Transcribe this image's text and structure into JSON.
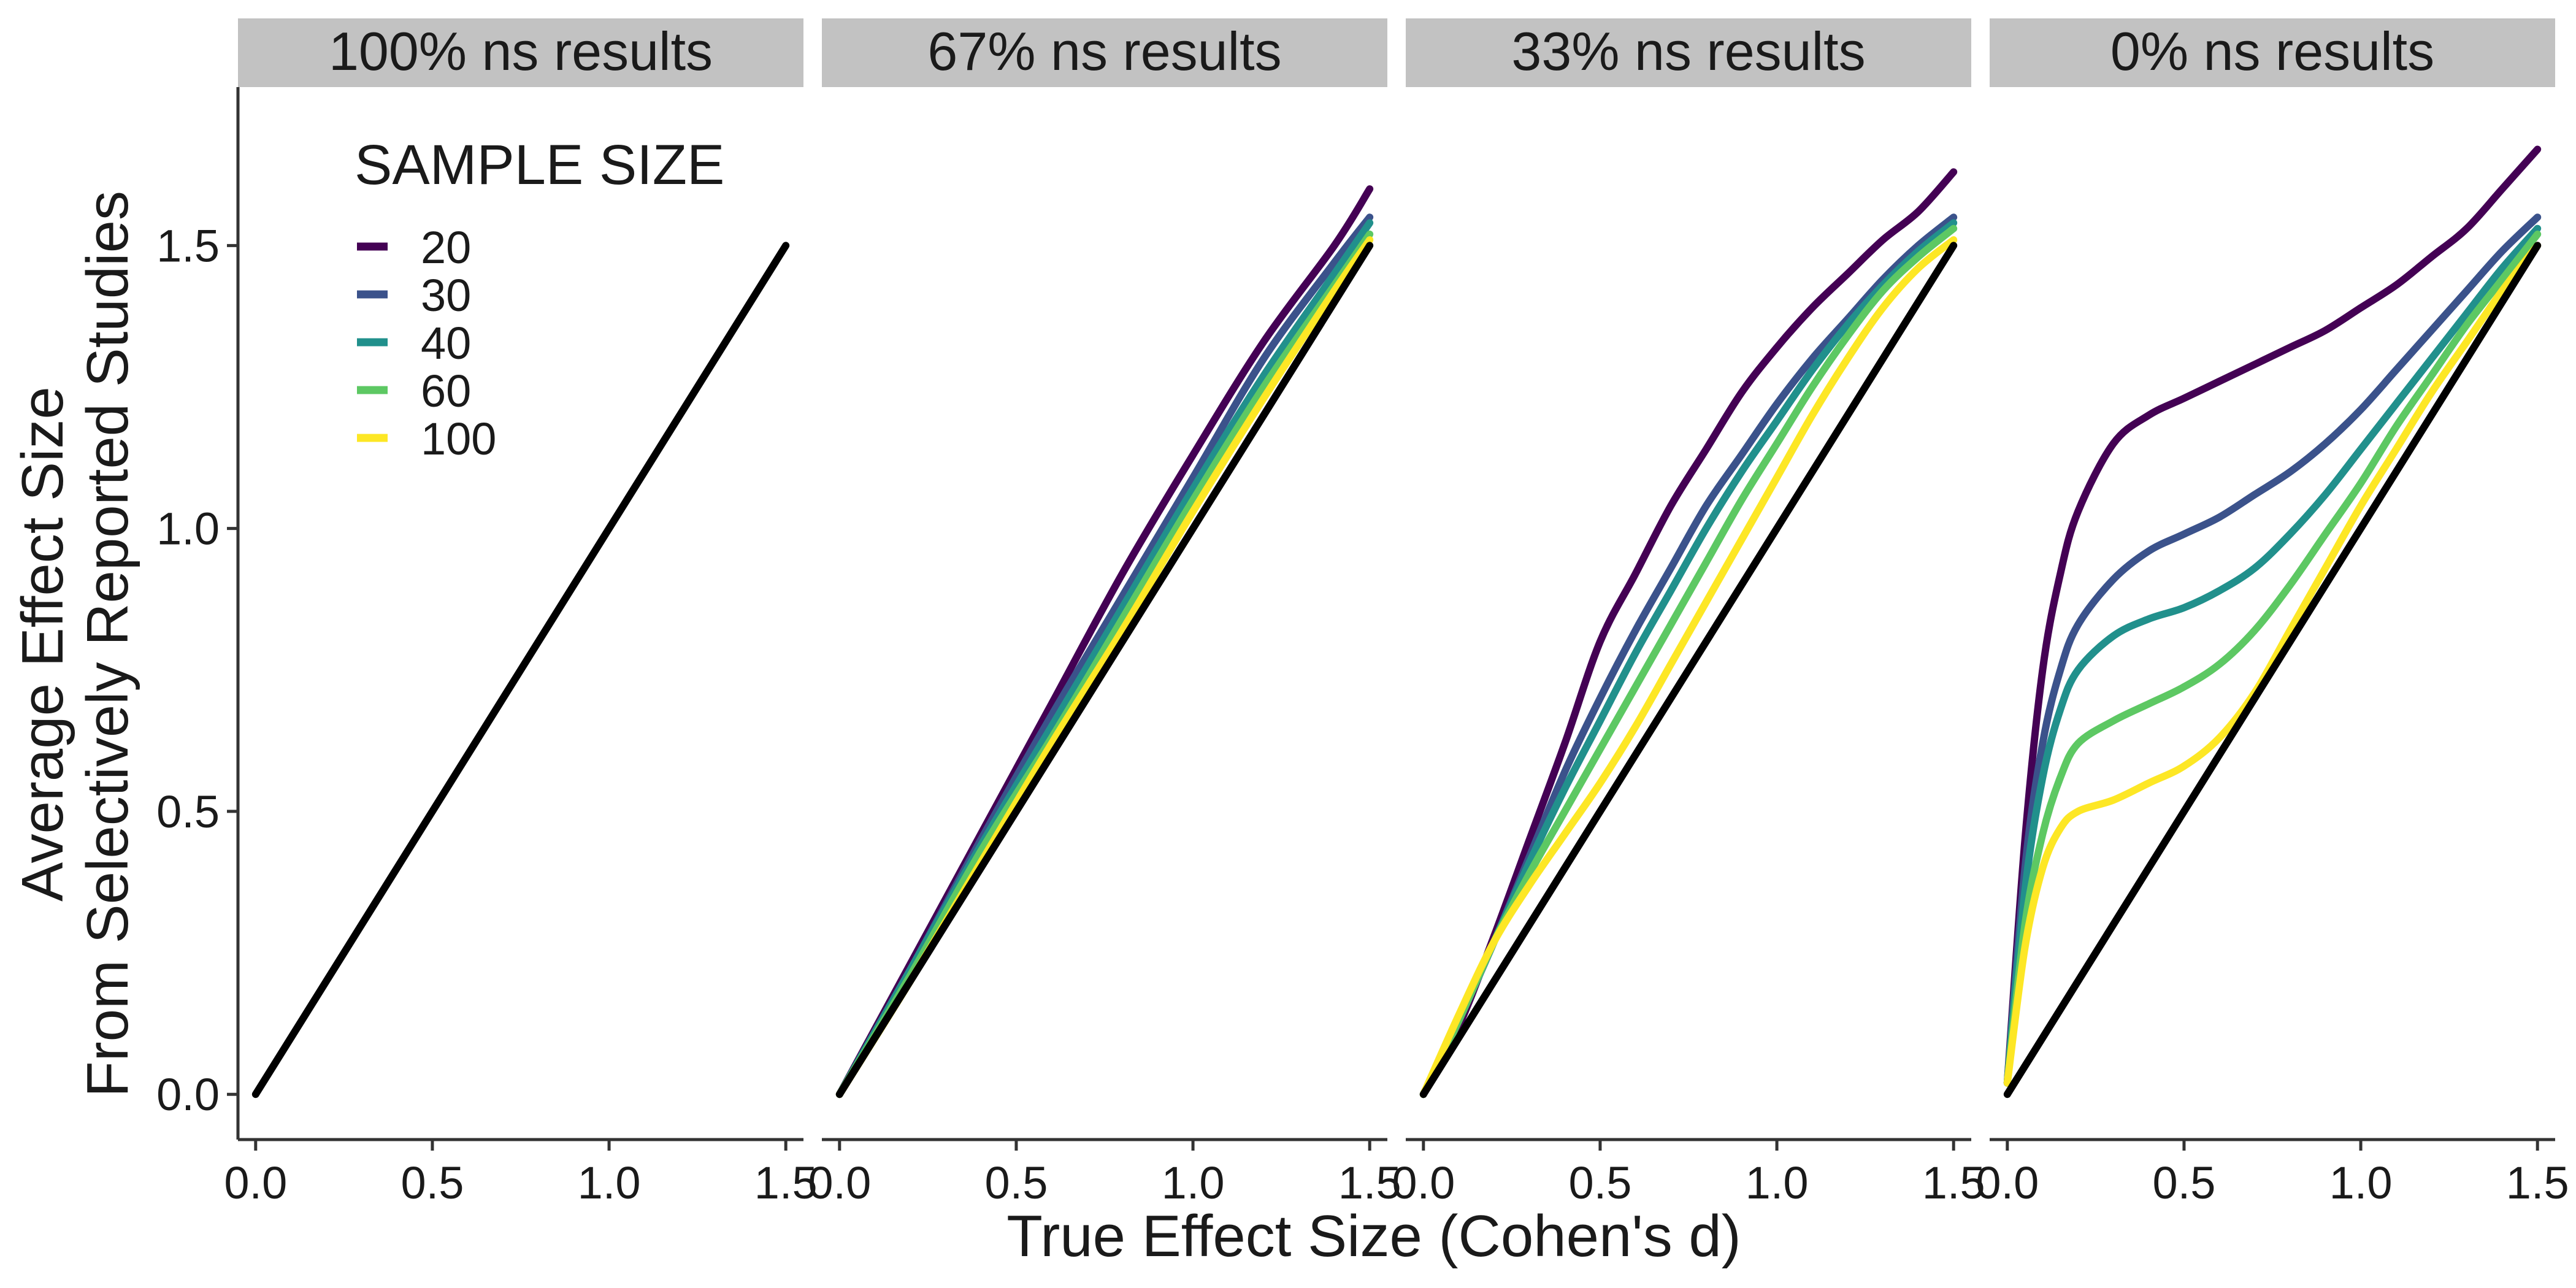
{
  "chart_data": {
    "type": "line",
    "xlabel": "True Effect Size (Cohen's d)",
    "ylabel_line1": "Average Effect Size",
    "ylabel_line2": "From Selectively Reported Studies",
    "xlim": [
      -0.05,
      1.55
    ],
    "ylim": [
      -0.08,
      1.78
    ],
    "x_ticks": [
      "0.0",
      "0.5",
      "1.0",
      "1.5"
    ],
    "y_ticks": [
      "0.0",
      "0.5",
      "1.0",
      "1.5"
    ],
    "legend": {
      "title": "SAMPLE SIZE",
      "placement": "top-left inside first panel",
      "entries": [
        {
          "label": "20",
          "color": "#440154"
        },
        {
          "label": "30",
          "color": "#3B528B"
        },
        {
          "label": "40",
          "color": "#21908C"
        },
        {
          "label": "60",
          "color": "#5DC863"
        },
        {
          "label": "100",
          "color": "#FDE725"
        }
      ]
    },
    "reference_color": "#000000",
    "panels": [
      {
        "title": "100% ns results",
        "reference": [
          [
            0,
            0
          ],
          [
            1.5,
            1.5
          ]
        ],
        "series": []
      },
      {
        "title": "67% ns results",
        "reference": [
          [
            0,
            0
          ],
          [
            1.5,
            1.5
          ]
        ],
        "series": [
          {
            "name": "20",
            "color": "#440154",
            "points": [
              [
                0,
                0
              ],
              [
                0.2,
                0.23
              ],
              [
                0.4,
                0.46
              ],
              [
                0.6,
                0.69
              ],
              [
                0.8,
                0.92
              ],
              [
                1.0,
                1.13
              ],
              [
                1.2,
                1.33
              ],
              [
                1.4,
                1.5
              ],
              [
                1.5,
                1.6
              ]
            ]
          },
          {
            "name": "30",
            "color": "#3B528B",
            "points": [
              [
                0,
                0
              ],
              [
                0.2,
                0.22
              ],
              [
                0.4,
                0.45
              ],
              [
                0.6,
                0.67
              ],
              [
                0.8,
                0.88
              ],
              [
                1.0,
                1.09
              ],
              [
                1.2,
                1.3
              ],
              [
                1.4,
                1.47
              ],
              [
                1.5,
                1.55
              ]
            ]
          },
          {
            "name": "40",
            "color": "#21908C",
            "points": [
              [
                0,
                0
              ],
              [
                0.2,
                0.22
              ],
              [
                0.4,
                0.44
              ],
              [
                0.6,
                0.65
              ],
              [
                0.8,
                0.86
              ],
              [
                1.0,
                1.07
              ],
              [
                1.2,
                1.27
              ],
              [
                1.4,
                1.45
              ],
              [
                1.5,
                1.54
              ]
            ]
          },
          {
            "name": "60",
            "color": "#5DC863",
            "points": [
              [
                0,
                0
              ],
              [
                0.2,
                0.21
              ],
              [
                0.4,
                0.43
              ],
              [
                0.6,
                0.63
              ],
              [
                0.8,
                0.84
              ],
              [
                1.0,
                1.05
              ],
              [
                1.2,
                1.25
              ],
              [
                1.4,
                1.43
              ],
              [
                1.5,
                1.52
              ]
            ]
          },
          {
            "name": "100",
            "color": "#FDE725",
            "points": [
              [
                0,
                0
              ],
              [
                0.2,
                0.2
              ],
              [
                0.4,
                0.41
              ],
              [
                0.6,
                0.62
              ],
              [
                0.8,
                0.82
              ],
              [
                1.0,
                1.03
              ],
              [
                1.2,
                1.23
              ],
              [
                1.4,
                1.42
              ],
              [
                1.5,
                1.51
              ]
            ]
          }
        ]
      },
      {
        "title": "33% ns results",
        "reference": [
          [
            0,
            0
          ],
          [
            1.5,
            1.5
          ]
        ],
        "series": [
          {
            "name": "20",
            "color": "#440154",
            "points": [
              [
                0,
                0
              ],
              [
                0.1,
                0.12
              ],
              [
                0.2,
                0.28
              ],
              [
                0.3,
                0.45
              ],
              [
                0.4,
                0.62
              ],
              [
                0.5,
                0.8
              ],
              [
                0.6,
                0.92
              ],
              [
                0.7,
                1.04
              ],
              [
                0.8,
                1.14
              ],
              [
                0.9,
                1.24
              ],
              [
                1.0,
                1.32
              ],
              [
                1.1,
                1.39
              ],
              [
                1.2,
                1.45
              ],
              [
                1.3,
                1.51
              ],
              [
                1.4,
                1.56
              ],
              [
                1.5,
                1.63
              ]
            ]
          },
          {
            "name": "30",
            "color": "#3B528B",
            "points": [
              [
                0,
                0
              ],
              [
                0.1,
                0.13
              ],
              [
                0.2,
                0.27
              ],
              [
                0.3,
                0.42
              ],
              [
                0.4,
                0.57
              ],
              [
                0.5,
                0.7
              ],
              [
                0.6,
                0.82
              ],
              [
                0.7,
                0.93
              ],
              [
                0.8,
                1.04
              ],
              [
                0.9,
                1.13
              ],
              [
                1.0,
                1.22
              ],
              [
                1.1,
                1.3
              ],
              [
                1.2,
                1.37
              ],
              [
                1.3,
                1.44
              ],
              [
                1.4,
                1.5
              ],
              [
                1.5,
                1.55
              ]
            ]
          },
          {
            "name": "40",
            "color": "#21908C",
            "points": [
              [
                0,
                0
              ],
              [
                0.1,
                0.13
              ],
              [
                0.2,
                0.27
              ],
              [
                0.3,
                0.41
              ],
              [
                0.4,
                0.54
              ],
              [
                0.5,
                0.66
              ],
              [
                0.6,
                0.78
              ],
              [
                0.7,
                0.89
              ],
              [
                0.8,
                1.0
              ],
              [
                0.9,
                1.1
              ],
              [
                1.0,
                1.19
              ],
              [
                1.1,
                1.28
              ],
              [
                1.2,
                1.36
              ],
              [
                1.3,
                1.43
              ],
              [
                1.4,
                1.49
              ],
              [
                1.5,
                1.54
              ]
            ]
          },
          {
            "name": "60",
            "color": "#5DC863",
            "points": [
              [
                0,
                0
              ],
              [
                0.1,
                0.13
              ],
              [
                0.2,
                0.27
              ],
              [
                0.3,
                0.39
              ],
              [
                0.4,
                0.5
              ],
              [
                0.5,
                0.61
              ],
              [
                0.6,
                0.72
              ],
              [
                0.7,
                0.83
              ],
              [
                0.8,
                0.94
              ],
              [
                0.9,
                1.05
              ],
              [
                1.0,
                1.15
              ],
              [
                1.1,
                1.25
              ],
              [
                1.2,
                1.34
              ],
              [
                1.3,
                1.42
              ],
              [
                1.4,
                1.48
              ],
              [
                1.5,
                1.53
              ]
            ]
          },
          {
            "name": "100",
            "color": "#FDE725",
            "points": [
              [
                0,
                0
              ],
              [
                0.1,
                0.14
              ],
              [
                0.2,
                0.27
              ],
              [
                0.3,
                0.37
              ],
              [
                0.4,
                0.46
              ],
              [
                0.5,
                0.55
              ],
              [
                0.6,
                0.65
              ],
              [
                0.7,
                0.76
              ],
              [
                0.8,
                0.87
              ],
              [
                0.9,
                0.98
              ],
              [
                1.0,
                1.09
              ],
              [
                1.1,
                1.2
              ],
              [
                1.2,
                1.3
              ],
              [
                1.3,
                1.39
              ],
              [
                1.4,
                1.46
              ],
              [
                1.5,
                1.51
              ]
            ]
          }
        ]
      },
      {
        "title": "0% ns results",
        "reference": [
          [
            0,
            0
          ],
          [
            1.5,
            1.5
          ]
        ],
        "series": [
          {
            "name": "20",
            "color": "#440154",
            "points": [
              [
                0,
                0.02
              ],
              [
                0.05,
                0.45
              ],
              [
                0.1,
                0.75
              ],
              [
                0.15,
                0.92
              ],
              [
                0.2,
                1.03
              ],
              [
                0.3,
                1.15
              ],
              [
                0.4,
                1.2
              ],
              [
                0.5,
                1.23
              ],
              [
                0.6,
                1.26
              ],
              [
                0.7,
                1.29
              ],
              [
                0.8,
                1.32
              ],
              [
                0.9,
                1.35
              ],
              [
                1.0,
                1.39
              ],
              [
                1.1,
                1.43
              ],
              [
                1.2,
                1.48
              ],
              [
                1.3,
                1.53
              ],
              [
                1.4,
                1.6
              ],
              [
                1.5,
                1.67
              ]
            ]
          },
          {
            "name": "30",
            "color": "#3B528B",
            "points": [
              [
                0,
                0.02
              ],
              [
                0.05,
                0.4
              ],
              [
                0.1,
                0.62
              ],
              [
                0.15,
                0.75
              ],
              [
                0.2,
                0.83
              ],
              [
                0.3,
                0.91
              ],
              [
                0.4,
                0.96
              ],
              [
                0.5,
                0.99
              ],
              [
                0.6,
                1.02
              ],
              [
                0.7,
                1.06
              ],
              [
                0.8,
                1.1
              ],
              [
                0.9,
                1.15
              ],
              [
                1.0,
                1.21
              ],
              [
                1.1,
                1.28
              ],
              [
                1.2,
                1.35
              ],
              [
                1.3,
                1.42
              ],
              [
                1.4,
                1.49
              ],
              [
                1.5,
                1.55
              ]
            ]
          },
          {
            "name": "40",
            "color": "#21908C",
            "points": [
              [
                0,
                0.02
              ],
              [
                0.05,
                0.36
              ],
              [
                0.1,
                0.56
              ],
              [
                0.15,
                0.68
              ],
              [
                0.2,
                0.75
              ],
              [
                0.3,
                0.81
              ],
              [
                0.4,
                0.84
              ],
              [
                0.5,
                0.86
              ],
              [
                0.6,
                0.89
              ],
              [
                0.7,
                0.93
              ],
              [
                0.8,
                0.99
              ],
              [
                0.9,
                1.06
              ],
              [
                1.0,
                1.14
              ],
              [
                1.1,
                1.22
              ],
              [
                1.2,
                1.3
              ],
              [
                1.3,
                1.38
              ],
              [
                1.4,
                1.46
              ],
              [
                1.5,
                1.53
              ]
            ]
          },
          {
            "name": "60",
            "color": "#5DC863",
            "points": [
              [
                0,
                0.02
              ],
              [
                0.05,
                0.3
              ],
              [
                0.1,
                0.46
              ],
              [
                0.15,
                0.56
              ],
              [
                0.2,
                0.62
              ],
              [
                0.3,
                0.66
              ],
              [
                0.4,
                0.69
              ],
              [
                0.5,
                0.72
              ],
              [
                0.6,
                0.76
              ],
              [
                0.7,
                0.82
              ],
              [
                0.8,
                0.9
              ],
              [
                0.9,
                0.99
              ],
              [
                1.0,
                1.08
              ],
              [
                1.1,
                1.18
              ],
              [
                1.2,
                1.27
              ],
              [
                1.3,
                1.36
              ],
              [
                1.4,
                1.44
              ],
              [
                1.5,
                1.52
              ]
            ]
          },
          {
            "name": "100",
            "color": "#FDE725",
            "points": [
              [
                0,
                0.02
              ],
              [
                0.05,
                0.26
              ],
              [
                0.1,
                0.4
              ],
              [
                0.15,
                0.47
              ],
              [
                0.2,
                0.5
              ],
              [
                0.3,
                0.52
              ],
              [
                0.4,
                0.55
              ],
              [
                0.5,
                0.58
              ],
              [
                0.6,
                0.63
              ],
              [
                0.7,
                0.71
              ],
              [
                0.8,
                0.82
              ],
              [
                0.9,
                0.93
              ],
              [
                1.0,
                1.04
              ],
              [
                1.1,
                1.14
              ],
              [
                1.2,
                1.24
              ],
              [
                1.3,
                1.33
              ],
              [
                1.4,
                1.42
              ],
              [
                1.5,
                1.5
              ]
            ]
          }
        ]
      }
    ]
  }
}
